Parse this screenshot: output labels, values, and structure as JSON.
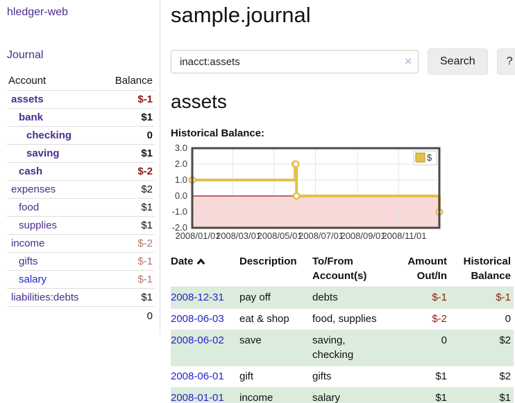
{
  "sidebar": {
    "brand": "hledger-web",
    "nav": [
      {
        "label": "Journal"
      }
    ],
    "accounts_table": {
      "col_account": "Account",
      "col_balance": "Balance",
      "rows": [
        {
          "name": "assets",
          "indent": 0,
          "bold": true,
          "balance": "$-1",
          "neg": "strong"
        },
        {
          "name": "bank",
          "indent": 1,
          "bold": true,
          "balance": "$1",
          "neg": "none"
        },
        {
          "name": "checking",
          "indent": 2,
          "bold": true,
          "balance": "0",
          "neg": "none"
        },
        {
          "name": "saving",
          "indent": 2,
          "bold": true,
          "balance": "$1",
          "neg": "none"
        },
        {
          "name": "cash",
          "indent": 1,
          "bold": true,
          "balance": "$-2",
          "neg": "strong"
        },
        {
          "name": "expenses",
          "indent": 0,
          "bold": false,
          "balance": "$2",
          "neg": "none"
        },
        {
          "name": "food",
          "indent": 1,
          "bold": false,
          "balance": "$1",
          "neg": "none"
        },
        {
          "name": "supplies",
          "indent": 1,
          "bold": false,
          "balance": "$1",
          "neg": "none"
        },
        {
          "name": "income",
          "indent": 0,
          "bold": false,
          "balance": "$-2",
          "neg": "light"
        },
        {
          "name": "gifts",
          "indent": 1,
          "bold": false,
          "balance": "$-1",
          "neg": "light"
        },
        {
          "name": "salary",
          "indent": 1,
          "bold": false,
          "balance": "$-1",
          "neg": "light",
          "link_color": "blue"
        },
        {
          "name": "liabilities:debts",
          "indent": 0,
          "bold": false,
          "balance": "$1",
          "neg": "none"
        }
      ],
      "total": "0"
    }
  },
  "header": {
    "title": "sample.journal"
  },
  "search": {
    "query": "inacct:assets",
    "clear_label": "×",
    "button_label": "Search",
    "help_label": "?"
  },
  "account_page": {
    "heading": "assets",
    "chart_label": "Historical Balance:"
  },
  "chart_data": {
    "type": "line",
    "title": "Historical Balance:",
    "step": true,
    "series": [
      {
        "name": "$",
        "color": "#e4bf4a",
        "points": [
          [
            "2008-01-01",
            1
          ],
          [
            "2008-06-01",
            2
          ],
          [
            "2008-06-02",
            2
          ],
          [
            "2008-06-03",
            0
          ],
          [
            "2008-12-31",
            -1
          ]
        ]
      }
    ],
    "xlim": [
      "2008-01-01",
      "2008-12-31"
    ],
    "ylim": [
      -2,
      3
    ],
    "yticks": [
      "3.0",
      "2.0",
      "1.0",
      "0.0",
      "-1.0",
      "-2.0"
    ],
    "xticks": [
      {
        "label": "2008/01/01",
        "date": "2008-01-01"
      },
      {
        "label": "2008/03/01",
        "date": "2008-03-01"
      },
      {
        "label": "2008/05/01",
        "date": "2008-05-01"
      },
      {
        "label": "2008/07/01",
        "date": "2008-07-01"
      },
      {
        "label": "2008/09/01",
        "date": "2008-09-01"
      },
      {
        "label": "2008/11/01",
        "date": "2008-11-01"
      }
    ],
    "legend_position": "top-right",
    "grid": true,
    "negative_region_color": "#f9d8d8",
    "zero_line_color": "#8b1a1a",
    "grid_color": "#e5e5e5",
    "border_color": "#4a4a4a",
    "tick_color": "#3a3a3a"
  },
  "register": {
    "columns": {
      "date": "Date",
      "description": "Description",
      "accounts": "To/From\nAccount(s)",
      "amount": "Amount\nOut/In",
      "balance": "Historical\nBalance"
    },
    "rows": [
      {
        "date": "2008-12-31",
        "description": "pay off",
        "accounts": "debts",
        "amount": "$-1",
        "amount_neg": true,
        "balance": "$-1",
        "balance_neg": true
      },
      {
        "date": "2008-06-03",
        "description": "eat & shop",
        "accounts": "food, supplies",
        "amount": "$-2",
        "amount_neg": true,
        "balance": "0",
        "balance_neg": false
      },
      {
        "date": "2008-06-02",
        "description": "save",
        "accounts": "saving, checking",
        "amount": "0",
        "amount_neg": false,
        "balance": "$2",
        "balance_neg": false
      },
      {
        "date": "2008-06-01",
        "description": "gift",
        "accounts": "gifts",
        "amount": "$1",
        "amount_neg": false,
        "balance": "$2",
        "balance_neg": false
      },
      {
        "date": "2008-01-01",
        "description": "income",
        "accounts": "salary",
        "amount": "$1",
        "amount_neg": false,
        "balance": "$1",
        "balance_neg": false
      }
    ]
  }
}
